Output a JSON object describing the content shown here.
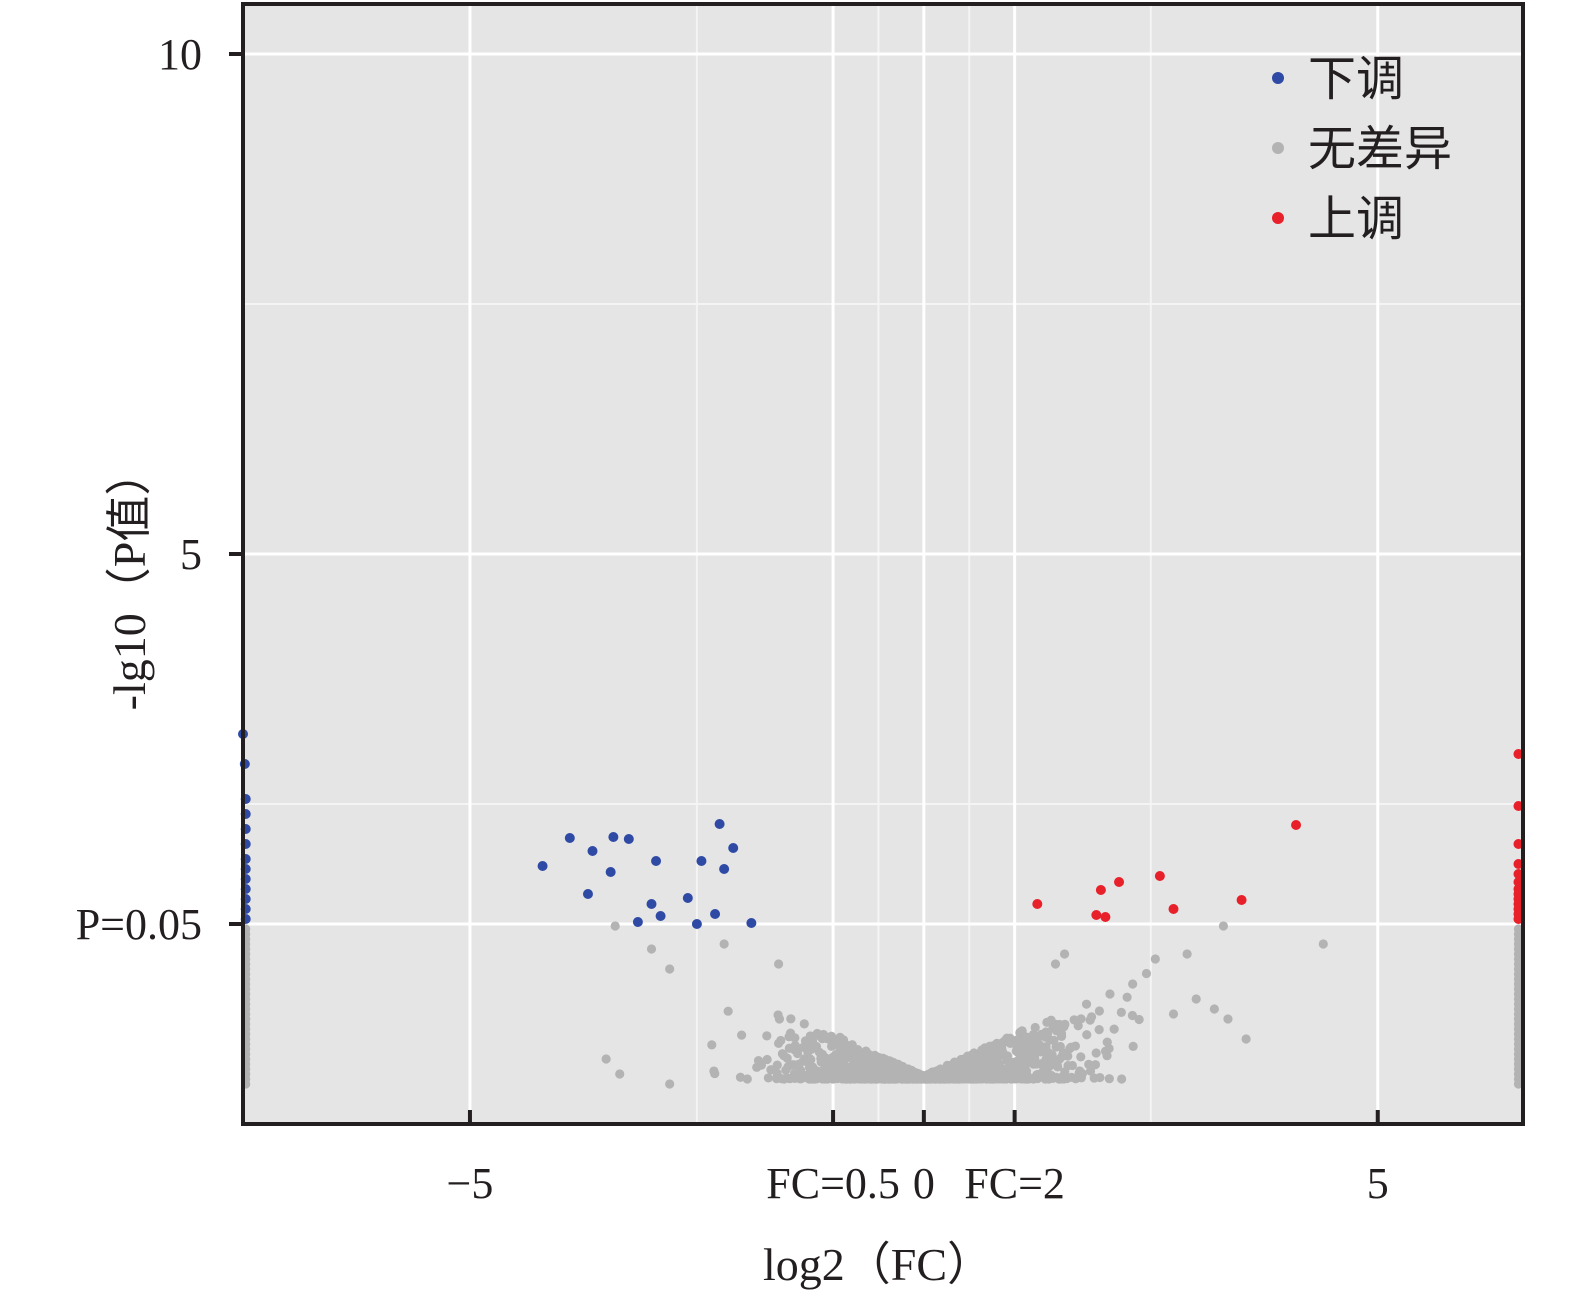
{
  "chart_data": {
    "type": "scatter",
    "title": "",
    "xlabel": "log2（FC）",
    "ylabel": "-lg10（P值）",
    "xlim": [
      -7.5,
      6.6
    ],
    "ylim": [
      -0.7,
      10.5
    ],
    "grid": true,
    "legend": "top-right",
    "x_ticks": [
      {
        "value": -5,
        "label": "−5"
      },
      {
        "value": -1,
        "label": "FC=0.5"
      },
      {
        "value": 0,
        "label": "0"
      },
      {
        "value": 1,
        "label": "FC=2"
      },
      {
        "value": 5,
        "label": "5"
      }
    ],
    "y_ticks": [
      {
        "value": 10,
        "label": "10"
      },
      {
        "value": 5,
        "label": "5"
      },
      {
        "value": 1.3,
        "label": "P=0.05"
      }
    ],
    "thresholds": {
      "fc_low": -1,
      "fc_high": 1,
      "p": 1.3
    },
    "colors": {
      "down": "#2e4aa5",
      "none": "#b3b3b3",
      "up": "#e8202a",
      "panel": "#e5e5e5",
      "grid": "#ffffff"
    },
    "series": [
      {
        "name": "下调",
        "color": "#2e4aa5",
        "points": [
          [
            -4.2,
            1.88
          ],
          [
            -3.9,
            2.16
          ],
          [
            -3.7,
            1.6
          ],
          [
            -3.65,
            2.03
          ],
          [
            -3.45,
            1.82
          ],
          [
            -3.42,
            2.17
          ],
          [
            -3.25,
            2.15
          ],
          [
            -3.15,
            1.32
          ],
          [
            -3.0,
            1.5
          ],
          [
            -2.9,
            1.38
          ],
          [
            -2.95,
            1.93
          ],
          [
            -2.6,
            1.56
          ],
          [
            -2.45,
            1.93
          ],
          [
            -2.5,
            1.3
          ],
          [
            -2.3,
            1.4
          ],
          [
            -2.25,
            2.3
          ],
          [
            -2.2,
            1.85
          ],
          [
            -2.1,
            2.06
          ],
          [
            -1.9,
            1.31
          ],
          [
            -7.5,
            3.2
          ],
          [
            -7.48,
            2.9
          ],
          [
            -7.47,
            2.55
          ],
          [
            -7.47,
            2.4
          ],
          [
            -7.47,
            2.25
          ],
          [
            -7.47,
            2.1
          ],
          [
            -7.47,
            1.95
          ],
          [
            -7.47,
            1.85
          ],
          [
            -7.47,
            1.75
          ],
          [
            -7.47,
            1.65
          ],
          [
            -7.47,
            1.55
          ],
          [
            -7.47,
            1.45
          ],
          [
            -7.47,
            1.35
          ]
        ]
      },
      {
        "name": "无差异",
        "color": "#b3b3b3",
        "points": []
      },
      {
        "name": "上调",
        "color": "#e8202a",
        "points": [
          [
            1.25,
            1.5
          ],
          [
            1.9,
            1.39
          ],
          [
            1.95,
            1.64
          ],
          [
            2.0,
            1.37
          ],
          [
            2.15,
            1.72
          ],
          [
            2.6,
            1.78
          ],
          [
            2.75,
            1.45
          ],
          [
            3.5,
            1.54
          ],
          [
            4.1,
            2.29
          ],
          [
            6.55,
            3.0
          ],
          [
            6.55,
            2.48
          ],
          [
            6.55,
            2.1
          ],
          [
            6.55,
            1.9
          ],
          [
            6.55,
            1.8
          ],
          [
            6.55,
            1.72
          ],
          [
            6.55,
            1.65
          ],
          [
            6.55,
            1.6
          ],
          [
            6.55,
            1.55
          ],
          [
            6.55,
            1.5
          ],
          [
            6.55,
            1.45
          ],
          [
            6.55,
            1.4
          ],
          [
            6.55,
            1.35
          ]
        ]
      }
    ]
  }
}
